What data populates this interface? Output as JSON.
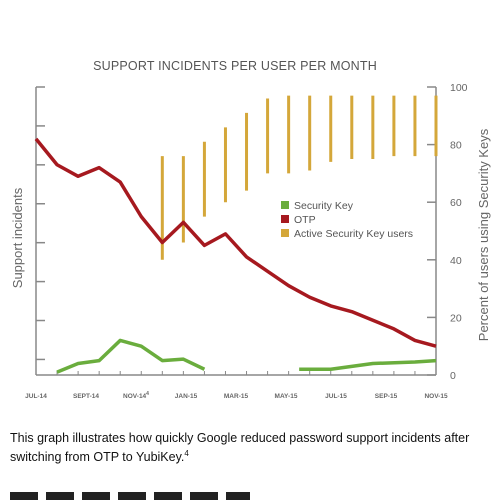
{
  "chart_data": {
    "type": "line",
    "title": "SUPPORT INCIDENTS PER USER PER MONTH",
    "ylabel_left": "Support incidents",
    "ylabel_right": "Percent of users using Security Keys",
    "x_tick_labels": [
      "JUL-14",
      "SEPT-14",
      "NOV-14",
      "JAN-15",
      "MAR-15",
      "MAY-15",
      "JUL-15",
      "SEP-15",
      "NOV-15"
    ],
    "x_tick_footnotes": [
      "",
      "",
      "4",
      "",
      "",
      "",
      "",
      "",
      ""
    ],
    "y_right_ticks": [
      0,
      20,
      40,
      60,
      80,
      100
    ],
    "y_right_range": [
      0,
      100
    ],
    "y_left_range": [
      0,
      100
    ],
    "grid": false,
    "legend": {
      "placement": "center-right",
      "entries": [
        "Security Key",
        "OTP",
        "Active Security Key users"
      ]
    },
    "colors": {
      "security_key": "#6aad3d",
      "otp": "#a6191f",
      "active_users": "#d4a73a",
      "axis": "#888888"
    },
    "series": [
      {
        "name": "OTP",
        "type": "line",
        "points": [
          [
            0,
            82
          ],
          [
            1,
            73
          ],
          [
            2,
            69
          ],
          [
            3,
            72
          ],
          [
            4,
            67
          ],
          [
            5,
            55
          ],
          [
            6,
            46
          ],
          [
            7,
            53
          ],
          [
            8,
            45
          ],
          [
            9,
            49
          ],
          [
            10,
            41
          ],
          [
            11,
            36
          ],
          [
            12,
            31
          ],
          [
            13,
            27
          ],
          [
            14,
            24
          ],
          [
            15,
            22
          ],
          [
            16,
            19
          ],
          [
            17,
            16
          ],
          [
            18,
            12
          ],
          [
            19,
            10
          ]
        ]
      },
      {
        "name": "Security Key",
        "type": "line",
        "segments": [
          [
            [
              1,
              1
            ],
            [
              2,
              4
            ],
            [
              3,
              5
            ],
            [
              4,
              12
            ],
            [
              5,
              10
            ],
            [
              6,
              5
            ],
            [
              7,
              5.5
            ],
            [
              8,
              2
            ]
          ],
          [
            [
              12.5,
              2
            ],
            [
              14,
              2
            ],
            [
              15,
              3
            ],
            [
              16,
              4
            ],
            [
              18,
              4.5
            ],
            [
              19,
              5
            ]
          ]
        ]
      },
      {
        "name": "Active Security Key users",
        "type": "range-bar",
        "axis": "right",
        "ranges": [
          [
            6,
            40,
            76
          ],
          [
            7,
            46,
            76
          ],
          [
            8,
            55,
            81
          ],
          [
            9,
            60,
            86
          ],
          [
            10,
            64,
            91
          ],
          [
            11,
            70,
            96
          ],
          [
            12,
            70,
            97
          ],
          [
            13,
            71,
            97
          ],
          [
            14,
            74,
            97
          ],
          [
            15,
            75,
            97
          ],
          [
            16,
            75,
            97
          ],
          [
            17,
            76,
            97
          ],
          [
            18,
            76,
            97
          ],
          [
            19,
            76,
            97
          ]
        ]
      }
    ]
  },
  "caption": {
    "text": "This graph illustrates how quickly Google reduced password support incidents after switching from OTP to YubiKey.",
    "footnote": "4"
  },
  "cut_off_heading": "Beyond password reset"
}
